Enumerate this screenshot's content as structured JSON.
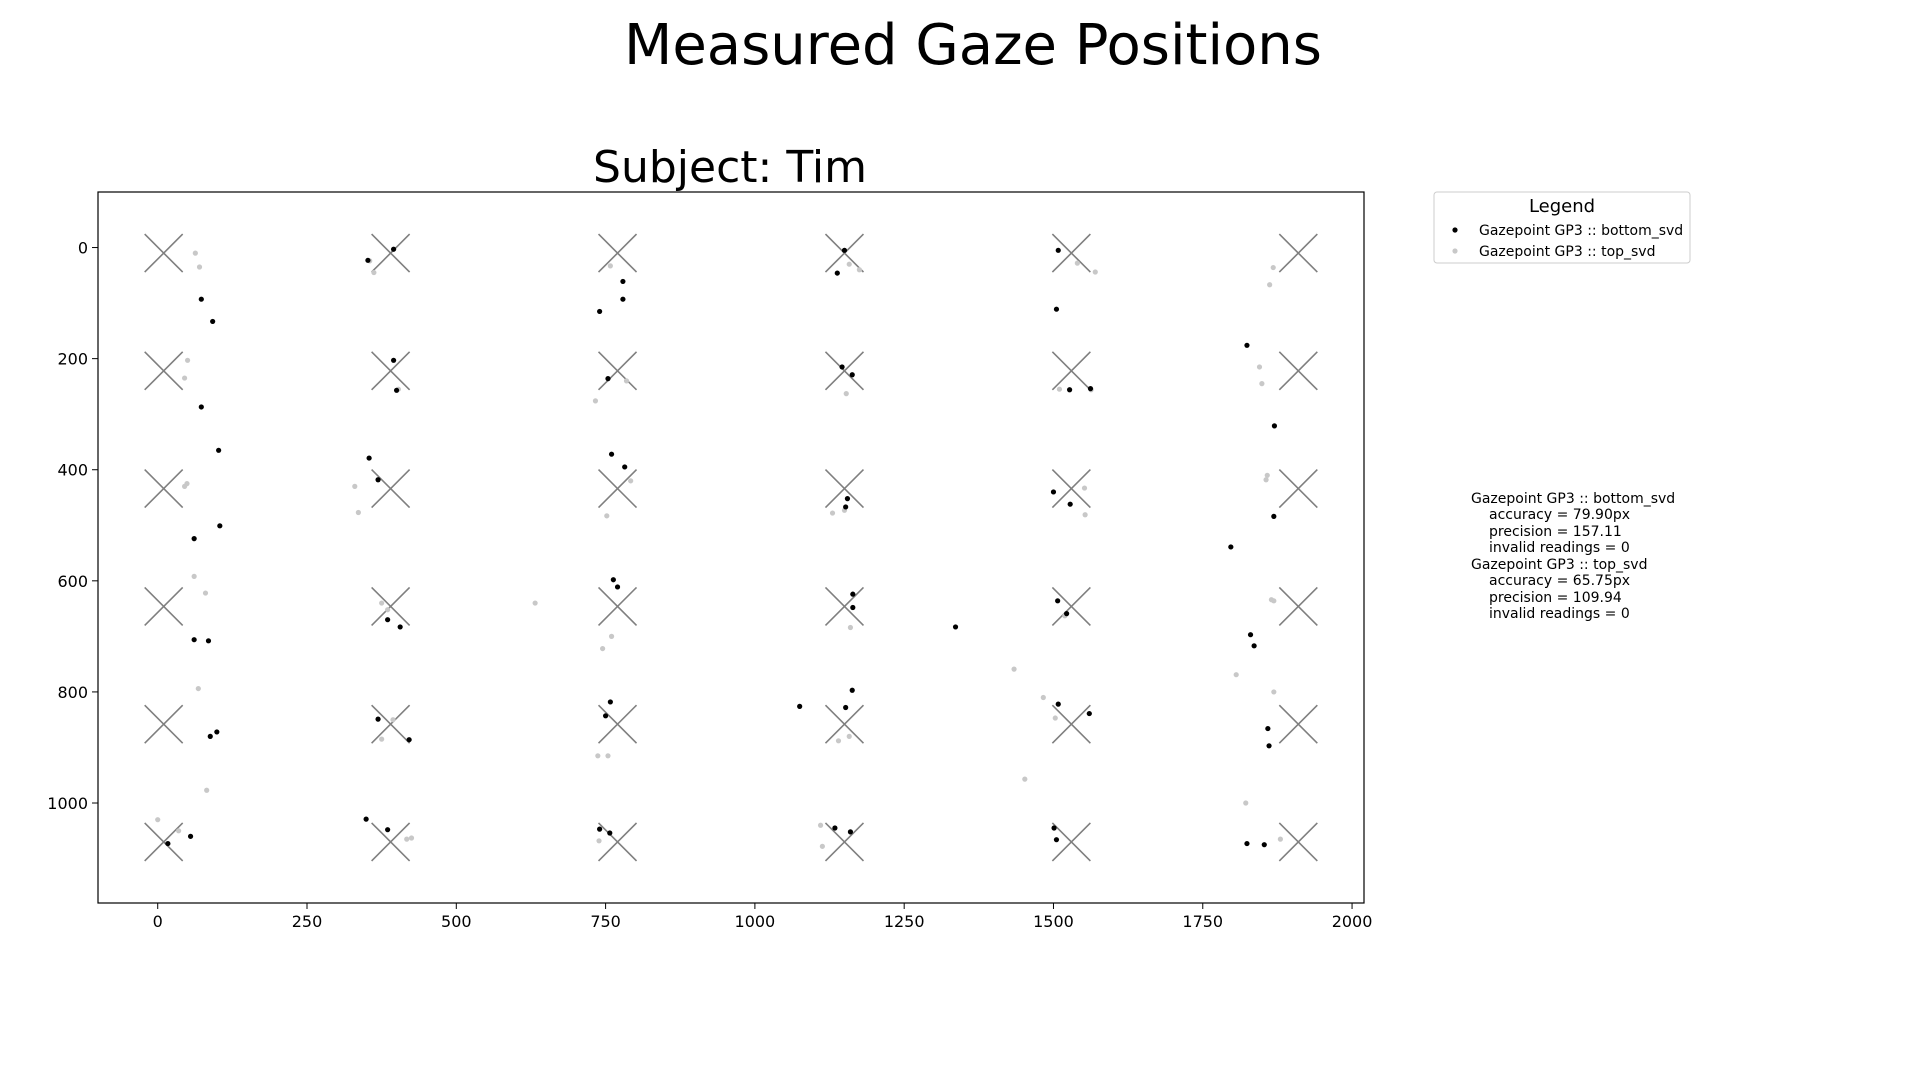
{
  "suptitle": "Measured Gaze Positions",
  "chart_data": {
    "type": "scatter",
    "title": "Subject: Tim",
    "xlabel": "",
    "ylabel": "",
    "xlim": [
      -100,
      2020
    ],
    "ylim": [
      1180,
      -100
    ],
    "y_inverted": true,
    "grid": false,
    "x_ticks": [
      0,
      250,
      500,
      750,
      1000,
      1250,
      1500,
      1750,
      2000
    ],
    "y_ticks": [
      0,
      200,
      400,
      600,
      800,
      1000
    ],
    "targets": {
      "marker": "x",
      "color": "#7f7f7f",
      "x": [
        10,
        390,
        770,
        1150,
        1530,
        1910
      ],
      "y": [
        10,
        222,
        434,
        646,
        858,
        1070
      ]
    },
    "legend": {
      "title": "Legend",
      "placement": "upper right, outside plot",
      "entries": [
        {
          "label": "Gazepoint GP3 :: bottom_svd",
          "color": "#000000"
        },
        {
          "label": "Gazepoint GP3 :: top_svd",
          "color": "#c8c8c8"
        }
      ]
    },
    "series": [
      {
        "name": "Gazepoint GP3 :: bottom_svd",
        "color": "#000000",
        "points": [
          [
            73,
            93
          ],
          [
            92,
            133
          ],
          [
            73,
            287
          ],
          [
            102,
            365
          ],
          [
            104,
            501
          ],
          [
            61,
            524
          ],
          [
            61,
            706
          ],
          [
            85,
            708
          ],
          [
            88,
            880
          ],
          [
            99,
            872
          ],
          [
            17,
            1073
          ],
          [
            55,
            1060
          ],
          [
            352,
            23
          ],
          [
            395,
            3
          ],
          [
            395,
            203
          ],
          [
            400,
            257
          ],
          [
            354,
            379
          ],
          [
            369,
            418
          ],
          [
            385,
            670
          ],
          [
            406,
            683
          ],
          [
            369,
            849
          ],
          [
            421,
            886
          ],
          [
            349,
            1029
          ],
          [
            385,
            1048
          ],
          [
            779,
            61
          ],
          [
            779,
            93
          ],
          [
            740,
            115
          ],
          [
            754,
            236
          ],
          [
            760,
            372
          ],
          [
            782,
            395
          ],
          [
            763,
            598
          ],
          [
            770,
            611
          ],
          [
            758,
            818
          ],
          [
            750,
            843
          ],
          [
            740,
            1047
          ],
          [
            757,
            1054
          ],
          [
            1150,
            5
          ],
          [
            1138,
            46
          ],
          [
            1146,
            215
          ],
          [
            1163,
            229
          ],
          [
            1155,
            452
          ],
          [
            1152,
            467
          ],
          [
            1164,
            624
          ],
          [
            1164,
            648
          ],
          [
            1163,
            797
          ],
          [
            1152,
            828
          ],
          [
            1075,
            826
          ],
          [
            1134,
            1045
          ],
          [
            1160,
            1052
          ],
          [
            1336,
            683
          ],
          [
            1508,
            5
          ],
          [
            1505,
            111
          ],
          [
            1527,
            256
          ],
          [
            1562,
            254
          ],
          [
            1500,
            440
          ],
          [
            1528,
            462
          ],
          [
            1507,
            636
          ],
          [
            1522,
            659
          ],
          [
            1508,
            822
          ],
          [
            1560,
            839
          ],
          [
            1501,
            1045
          ],
          [
            1505,
            1066
          ],
          [
            1824,
            176
          ],
          [
            1870,
            321
          ],
          [
            1869,
            484
          ],
          [
            1797,
            539
          ],
          [
            1830,
            697
          ],
          [
            1836,
            717
          ],
          [
            1859,
            866
          ],
          [
            1861,
            897
          ],
          [
            1824,
            1073
          ],
          [
            1853,
            1075
          ]
        ]
      },
      {
        "name": "Gazepoint GP3 :: top_svd",
        "color": "#c8c8c8",
        "points": [
          [
            63,
            10
          ],
          [
            70,
            35
          ],
          [
            50,
            203
          ],
          [
            45,
            235
          ],
          [
            49,
            425
          ],
          [
            45,
            430
          ],
          [
            61,
            592
          ],
          [
            80,
            622
          ],
          [
            68,
            794
          ],
          [
            82,
            977
          ],
          [
            0,
            1030
          ],
          [
            35,
            1050
          ],
          [
            355,
            24
          ],
          [
            362,
            45
          ],
          [
            403,
            255
          ],
          [
            330,
            430
          ],
          [
            336,
            477
          ],
          [
            375,
            640
          ],
          [
            385,
            652
          ],
          [
            375,
            885
          ],
          [
            394,
            850
          ],
          [
            417,
            1065
          ],
          [
            425,
            1063
          ],
          [
            632,
            640
          ],
          [
            758,
            33
          ],
          [
            785,
            240
          ],
          [
            733,
            276
          ],
          [
            752,
            483
          ],
          [
            792,
            420
          ],
          [
            745,
            722
          ],
          [
            760,
            700
          ],
          [
            737,
            915
          ],
          [
            754,
            915
          ],
          [
            739,
            1068
          ],
          [
            1158,
            30
          ],
          [
            1175,
            40
          ],
          [
            1153,
            263
          ],
          [
            1130,
            478
          ],
          [
            1150,
            473
          ],
          [
            1160,
            684
          ],
          [
            1140,
            888
          ],
          [
            1158,
            880
          ],
          [
            1110,
            1040
          ],
          [
            1113,
            1078
          ],
          [
            1510,
            255
          ],
          [
            1540,
            28
          ],
          [
            1570,
            44
          ],
          [
            1552,
            433
          ],
          [
            1553,
            481
          ],
          [
            1519,
            663
          ],
          [
            1483,
            810
          ],
          [
            1503,
            847
          ],
          [
            1434,
            759
          ],
          [
            1452,
            957
          ],
          [
            1563,
            256
          ],
          [
            1868,
            36
          ],
          [
            1862,
            67
          ],
          [
            1845,
            215
          ],
          [
            1849,
            245
          ],
          [
            1856,
            418
          ],
          [
            1858,
            410
          ],
          [
            1865,
            634
          ],
          [
            1869,
            636
          ],
          [
            1806,
            769
          ],
          [
            1869,
            800
          ],
          [
            1822,
            1000
          ],
          [
            1880,
            1065
          ]
        ]
      }
    ]
  },
  "stats": [
    {
      "name": "Gazepoint GP3 :: bottom_svd",
      "accuracy": "accuracy = 79.90px",
      "precision": "precision = 157.11",
      "invalid": "invalid readings = 0"
    },
    {
      "name": "Gazepoint GP3 :: top_svd",
      "accuracy": "accuracy = 65.75px",
      "precision": "precision = 109.94",
      "invalid": "invalid readings = 0"
    }
  ]
}
